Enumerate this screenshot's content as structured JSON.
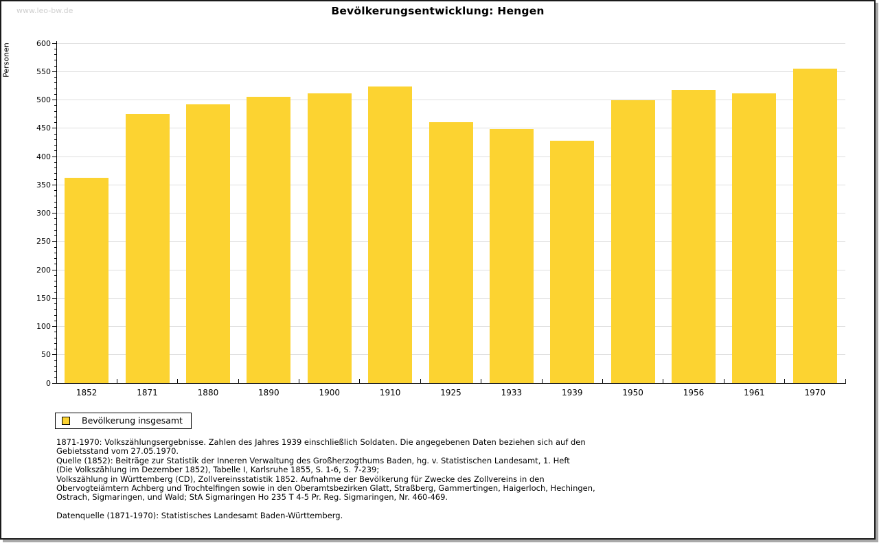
{
  "page": {
    "watermark": "www.leo-bw.de",
    "title": "Bevölkerungsentwicklung: Hengen"
  },
  "chart_data": {
    "type": "bar",
    "title": "Bevölkerungsentwicklung: Hengen",
    "ylabel": "Personen",
    "xlabel": "",
    "categories": [
      "1852",
      "1871",
      "1880",
      "1890",
      "1900",
      "1910",
      "1925",
      "1933",
      "1939",
      "1950",
      "1956",
      "1961",
      "1970"
    ],
    "values": [
      362,
      475,
      492,
      505,
      512,
      524,
      461,
      449,
      428,
      499,
      518,
      512,
      555
    ],
    "series_name": "Bevölkerung insgesamt",
    "ylim": [
      0,
      600
    ],
    "ytick_step": 50,
    "ytick_minor_step": 10,
    "grid": "horizontal-only",
    "legend_position": "bottom-left",
    "bar_color": "#FCD331",
    "grid_color": "#DEDEDE",
    "axis_color": "#000000"
  },
  "legend": {
    "label": "Bevölkerung insgesamt",
    "swatch_color": "#FCD331"
  },
  "footer": {
    "lines": [
      "1871-1970: Volkszählungsergebnisse. Zahlen des Jahres 1939 einschließlich Soldaten. Die angegebenen Daten beziehen sich auf den",
      "Gebietsstand vom 27.05.1970.",
      "Quelle (1852): Beiträge zur Statistik der Inneren Verwaltung des Großherzogthums Baden, hg. v. Statistischen Landesamt, 1. Heft",
      "(Die Volkszählung im Dezember 1852), Tabelle I, Karlsruhe 1855, S. 1-6, S. 7-239;",
      "Volkszählung in Württemberg (CD), Zollvereinsstatistik 1852. Aufnahme der Bevölkerung für Zwecke des Zollvereins in den",
      "Obervogteiämtern Achberg und Trochtelfingen sowie in den Oberamtsbezirken Glatt, Straßberg, Gammertingen, Haigerloch, Hechingen,",
      "Ostrach, Sigmaringen, und Wald; StA Sigmaringen Ho 235 T 4-5 Pr. Reg. Sigmaringen, Nr. 460-469.",
      "",
      "Datenquelle (1871-1970): Statistisches Landesamt Baden-Württemberg."
    ]
  }
}
